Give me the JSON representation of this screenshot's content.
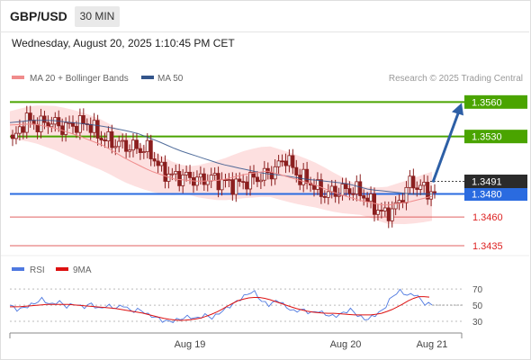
{
  "header": {
    "symbol": "GBP/USD",
    "timeframe": "30 MIN",
    "datetime": "Wednesday, August 20, 2025 1:10:45 PM CET"
  },
  "colors": {
    "ma20": "#f08c8c",
    "ma50": "#34558b",
    "bollinger_fill": "#fde0e0",
    "bullish_candle": "#f5f5f5",
    "bearish_candle": "#8b1f1f",
    "green_level": "#4aa400",
    "blue_level": "#2a6be0",
    "red_level": "#e06060",
    "current_price": "#2b2b2b",
    "arrow": "#2d5fa6",
    "rsi": "#4f79e0",
    "rsi_ma": "#dd1111"
  },
  "chart_data": [
    {
      "type": "candlestick",
      "title": "GBP/USD",
      "legend": {
        "placement": "top-left",
        "items": [
          {
            "name": "MA 20 + Bollinger Bands",
            "color": "#f08c8c"
          },
          {
            "name": "MA 50",
            "color": "#34558b"
          }
        ]
      },
      "watermark": "Research © 2025 Trading Central",
      "y_range": [
        1.3428,
        1.3572
      ],
      "x_ticks": [
        "Aug 19",
        "Aug 20",
        "Aug 21"
      ],
      "close_path": [
        1.3525,
        1.3545,
        1.354,
        1.3543,
        1.3538,
        1.354,
        1.3542,
        1.353,
        1.3525,
        1.3522,
        1.352,
        1.3518,
        1.35,
        1.3495,
        1.3495,
        1.3492,
        1.3494,
        1.349,
        1.3488,
        1.3492,
        1.3495,
        1.35,
        1.3512,
        1.3495,
        1.349,
        1.348,
        1.3482,
        1.3484,
        1.3482,
        1.347,
        1.3462,
        1.347,
        1.349,
        1.3485,
        1.348
      ],
      "ma50_path": [
        1.3542,
        1.3544,
        1.3544,
        1.3542,
        1.354,
        1.3537,
        1.3533,
        1.3526,
        1.3518,
        1.3512,
        1.3506,
        1.3502,
        1.3498,
        1.3496,
        1.3493,
        1.3491,
        1.3489,
        1.3484,
        1.3482,
        1.348,
        1.348
      ],
      "ma20_path": [
        1.354,
        1.3541,
        1.3537,
        1.353,
        1.3522,
        1.351,
        1.35,
        1.3493,
        1.3491,
        1.3492,
        1.3497,
        1.35,
        1.3494,
        1.3488,
        1.348,
        1.3474,
        1.347,
        1.3473,
        1.3478
      ],
      "levels": [
        {
          "label": "1.3560",
          "value": 1.356,
          "kind": "resistance",
          "color": "#4aa400"
        },
        {
          "label": "1.3530",
          "value": 1.353,
          "kind": "resistance",
          "color": "#4aa400"
        },
        {
          "label": "1.3480",
          "value": 1.348,
          "kind": "pivot",
          "color": "#2a6be0"
        },
        {
          "label": "1.3460",
          "value": 1.346,
          "kind": "support",
          "color": "#e06060"
        },
        {
          "label": "1.3435",
          "value": 1.3435,
          "kind": "support",
          "color": "#e06060"
        }
      ],
      "current_price": {
        "label": "1.3491",
        "value": 1.3491
      },
      "projection": {
        "from": 1.3491,
        "to": 1.356,
        "direction": "up"
      }
    },
    {
      "type": "line",
      "title": "RSI",
      "legend": {
        "placement": "top-left",
        "items": [
          {
            "name": "RSI",
            "color": "#4f79e0"
          },
          {
            "name": "9MA",
            "color": "#dd1111"
          }
        ]
      },
      "y_ticks": [
        "70",
        "50",
        "30"
      ],
      "y_range": [
        20,
        78
      ],
      "reference_lines": [
        70,
        50,
        30
      ],
      "x_ticks": [
        "Aug 19",
        "Aug 20",
        "Aug 21"
      ],
      "series": [
        {
          "name": "RSI",
          "values": [
            50,
            44,
            48,
            52,
            58,
            50,
            55,
            48,
            52,
            47,
            52,
            45,
            50,
            46,
            50,
            42,
            45,
            38,
            35,
            30,
            30,
            33,
            36,
            33,
            38,
            34,
            42,
            48,
            55,
            62,
            68,
            55,
            50,
            57,
            48,
            42,
            45,
            40,
            43,
            38,
            36,
            40,
            45,
            36,
            32,
            38,
            44,
            60,
            68,
            62,
            64,
            52,
            51
          ]
        },
        {
          "name": "9MA",
          "values": [
            48,
            48,
            49,
            50,
            51,
            51,
            51,
            50,
            49,
            48,
            47,
            46,
            44,
            42,
            40,
            37,
            34,
            32,
            31,
            32,
            34,
            38,
            43,
            50,
            56,
            59,
            60,
            58,
            54,
            50,
            46,
            43,
            41,
            40,
            40,
            39,
            38,
            38,
            38,
            40,
            44,
            50,
            57,
            61,
            60
          ]
        }
      ]
    }
  ]
}
